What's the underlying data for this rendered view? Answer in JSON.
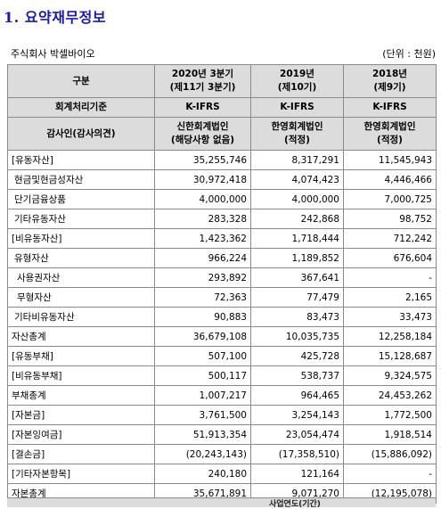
{
  "section_title": "1. 요약재무정보",
  "company": "주식회사 박셀바이오",
  "unit": "(단위 : 천원)",
  "header": {
    "label": "구분",
    "columns": [
      {
        "line1": "2020년 3분기",
        "line2": "(제11기 3분기)"
      },
      {
        "line1": "2019년",
        "line2": "(제10기)"
      },
      {
        "line1": "2018년",
        "line2": "(제9기)"
      }
    ],
    "standard_label": "회계처리기준",
    "standards": [
      "K-IFRS",
      "K-IFRS",
      "K-IFRS"
    ],
    "auditor_label": "감사인(감사의견)",
    "auditors": [
      {
        "line1": "신한회계법인",
        "line2": "(해당사항 없음)"
      },
      {
        "line1": "한영회계법인",
        "line2": "(적정)"
      },
      {
        "line1": "한영회계법인",
        "line2": "(적정)"
      }
    ]
  },
  "rows": [
    {
      "label": "[유동자산]",
      "values": [
        "35,255,746",
        "8,317,291",
        "11,545,943"
      ],
      "level": 0
    },
    {
      "label": "현금및현금성자산",
      "values": [
        "30,972,418",
        "4,074,423",
        "4,446,466"
      ],
      "level": 1
    },
    {
      "label": "단기금융상품",
      "values": [
        "4,000,000",
        "4,000,000",
        "7,000,725"
      ],
      "level": 1
    },
    {
      "label": "기타유동자산",
      "values": [
        "283,328",
        "242,868",
        "98,752"
      ],
      "level": 1
    },
    {
      "label": "[비유동자산]",
      "values": [
        "1,423,362",
        "1,718,444",
        "712,242"
      ],
      "level": 0
    },
    {
      "label": "유형자산",
      "values": [
        "966,224",
        "1,189,852",
        "676,604"
      ],
      "level": 1
    },
    {
      "label": "사용권자산",
      "values": [
        "293,892",
        "367,641",
        "-"
      ],
      "level": 2
    },
    {
      "label": "무형자산",
      "values": [
        "72,363",
        "77,479",
        "2,165"
      ],
      "level": 2
    },
    {
      "label": "기타비유동자산",
      "values": [
        "90,883",
        "83,473",
        "33,473"
      ],
      "level": 1
    },
    {
      "label": "자산총계",
      "values": [
        "36,679,108",
        "10,035,735",
        "12,258,184"
      ],
      "level": 0
    },
    {
      "label": "[유동부채]",
      "values": [
        "507,100",
        "425,728",
        "15,128,687"
      ],
      "level": 0
    },
    {
      "label": "[비유동부채]",
      "values": [
        "500,117",
        "538,737",
        "9,324,575"
      ],
      "level": 0
    },
    {
      "label": "부채총계",
      "values": [
        "1,007,217",
        "964,465",
        "24,453,262"
      ],
      "level": 0
    },
    {
      "label": "[자본금]",
      "values": [
        "3,761,500",
        "3,254,143",
        "1,772,500"
      ],
      "level": 0
    },
    {
      "label": "[자본잉여금]",
      "values": [
        "51,913,354",
        "23,054,474",
        "1,918,514"
      ],
      "level": 0
    },
    {
      "label": "[결손금]",
      "values": [
        "(20,243,143)",
        "(17,358,510)",
        "(15,886,092)"
      ],
      "level": 0
    },
    {
      "label": "[기타자본항목]",
      "values": [
        "240,180",
        "121,164",
        "-"
      ],
      "level": 0
    },
    {
      "label": "자본총계",
      "values": [
        "35,671,891",
        "9,071,270",
        "(12,195,078)"
      ],
      "level": 0
    }
  ],
  "next_header_partial": "사업연도(기간)"
}
